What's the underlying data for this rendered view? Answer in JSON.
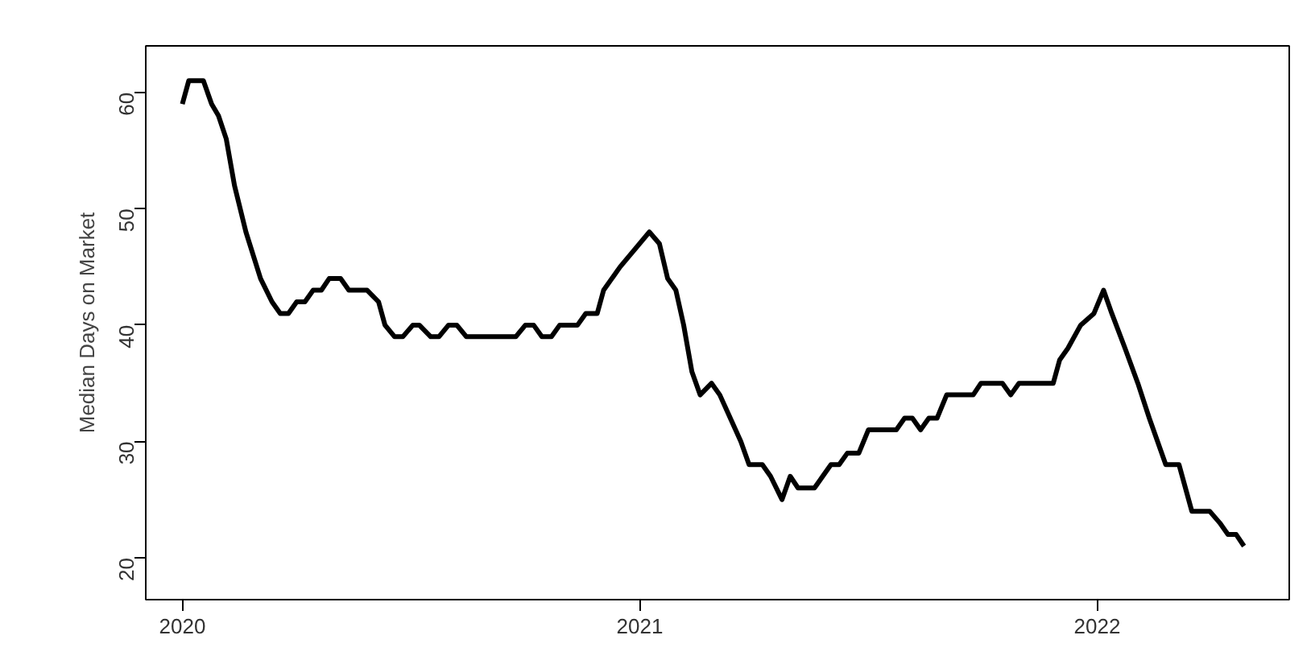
{
  "chart_data": {
    "type": "line",
    "ylabel": "Median Days on Market",
    "x": [
      2020,
      2020.014,
      2020.046,
      2020.064,
      2020.079,
      2020.096,
      2020.114,
      2020.139,
      2020.171,
      2020.196,
      2020.214,
      2020.232,
      2020.25,
      2020.268,
      2020.286,
      2020.304,
      2020.321,
      2020.346,
      2020.364,
      2020.404,
      2020.429,
      2020.443,
      2020.464,
      2020.482,
      2020.504,
      2020.518,
      2020.543,
      2020.561,
      2020.582,
      2020.6,
      2020.621,
      2020.729,
      2020.75,
      2020.768,
      2020.786,
      2020.807,
      2020.825,
      2020.864,
      2020.882,
      2020.907,
      2020.921,
      2020.957,
      2021.021,
      2021.043,
      2021.061,
      2021.079,
      2021.096,
      2021.114,
      2021.132,
      2021.157,
      2021.175,
      2021.221,
      2021.239,
      2021.268,
      2021.286,
      2021.311,
      2021.329,
      2021.346,
      2021.382,
      2021.418,
      2021.436,
      2021.454,
      2021.479,
      2021.5,
      2021.561,
      2021.579,
      2021.596,
      2021.614,
      2021.632,
      2021.65,
      2021.671,
      2021.729,
      2021.746,
      2021.793,
      2021.811,
      2021.829,
      2021.904,
      2021.918,
      2021.936,
      2021.964,
      2021.993,
      2022.014,
      2022.032,
      2022.061,
      2022.089,
      2022.114,
      2022.15,
      2022.179,
      2022.207,
      2022.246,
      2022.268,
      2022.286,
      2022.304,
      2022.321
    ],
    "series": [
      {
        "color": "#000000",
        "values": [
          59,
          61,
          61,
          59,
          58,
          56,
          52,
          48,
          44,
          42,
          41,
          41,
          42,
          42,
          43,
          43,
          44,
          44,
          43,
          43,
          42,
          40,
          39,
          39,
          40,
          40,
          39,
          39,
          40,
          40,
          39,
          39,
          40,
          40,
          39,
          39,
          40,
          40,
          41,
          41,
          43,
          45,
          48,
          47,
          44,
          43,
          40,
          36,
          34,
          35,
          34,
          30,
          28,
          28,
          27,
          25,
          27,
          26,
          26,
          28,
          28,
          29,
          29,
          31,
          31,
          32,
          32,
          31,
          32,
          32,
          34,
          34,
          35,
          35,
          34,
          35,
          35,
          37,
          38,
          40,
          41,
          43,
          41,
          38,
          35,
          32,
          28,
          28,
          24,
          24,
          23,
          22,
          22,
          21
        ]
      }
    ],
    "xlim": [
      2019.92,
      2022.42
    ],
    "ylim": [
      16.4,
      64
    ],
    "xticks": [
      2020,
      2021,
      2022
    ],
    "yticks": [
      20,
      30,
      40,
      50,
      60
    ],
    "grid": false,
    "marker": "none",
    "line_style": "solid"
  }
}
